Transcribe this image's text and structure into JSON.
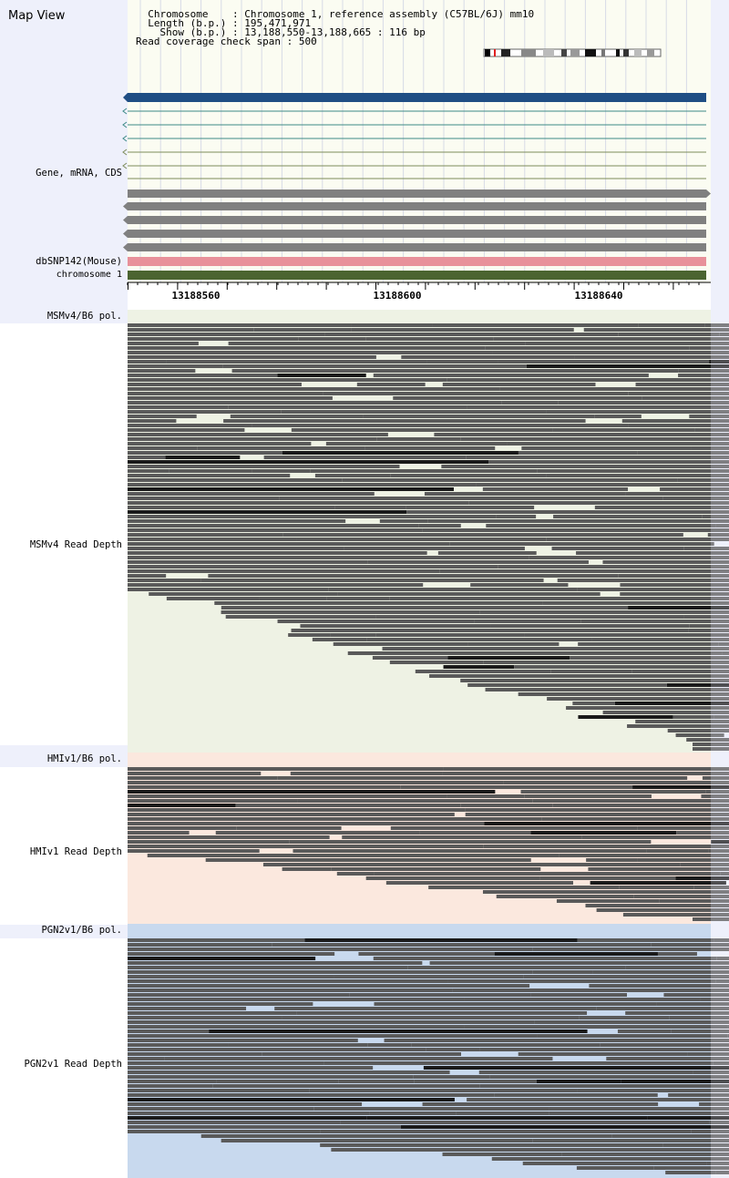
{
  "app": {
    "title": "Map View"
  },
  "info": {
    "chromosome_key": "Chromosome",
    "chromosome_val": "Chromosome 1, reference assembly (C57BL/6J) mm10",
    "length_key": "Length (b.p.)",
    "length_val": "195,471,971",
    "show_key": "Show (b.p.)",
    "show_val": "13,188,550-13,188,665 : 116 bp",
    "span_key": "Read coverage check span",
    "span_val": "500"
  },
  "tracks": {
    "gene": "Gene, mRNA, CDS",
    "dbsnp": "dbSNP142(Mouse)",
    "chrom": "chromosome 1",
    "msm_pol": "MSMv4/B6 pol.",
    "msm_depth": "MSMv4 Read Depth",
    "hmi_pol": "HMIv1/B6 pol.",
    "hmi_depth": "HMIv1 Read Depth",
    "pgn_pol": "PGN2v1/B6 pol.",
    "pgn_depth": "PGN2v1 Read Depth"
  },
  "ruler": {
    "ticks": [
      "13188560",
      "13188600",
      "13188640"
    ]
  },
  "colors": {
    "msm_bg": "#eef2e4",
    "hmi_bg": "#fbe8de",
    "pgn_bg": "#c8d9ee",
    "read": "#5a5a5a",
    "gene_main": "#1f4e84",
    "mrna": "#7e8c5a",
    "cds": "#808080",
    "snp": "#e8919a",
    "chrom": "#4b6430"
  }
}
